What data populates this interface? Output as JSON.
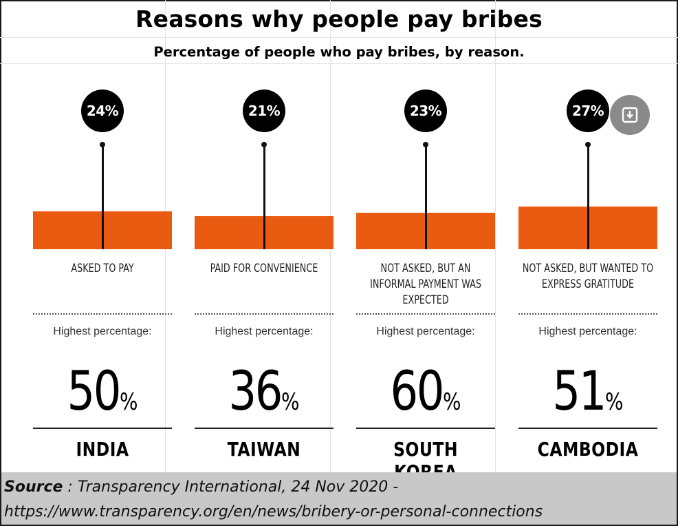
{
  "title": "Reasons why people pay bribes",
  "subtitle": "Percentage of people who pay bribes, by reason.",
  "chart_data": {
    "type": "bar",
    "categories": [
      "ASKED TO PAY",
      "PAID FOR CONVENIENCE",
      "NOT ASKED, BUT AN INFORMAL PAYMENT WAS EXPECTED",
      "NOT ASKED, BUT WANTED TO EXPRESS GRATITUDE"
    ],
    "values": [
      24,
      21,
      23,
      27
    ],
    "value_labels": [
      "24%",
      "21%",
      "23%",
      "27%"
    ],
    "ylim": [
      0,
      100
    ],
    "colors": {
      "bar": "#e85b10",
      "badge": "#000000"
    }
  },
  "panels": [
    {
      "reason": "ASKED TO PAY",
      "highest_label": "Highest percentage:",
      "highest_value": "50",
      "percent_sign": "%",
      "country": "INDIA"
    },
    {
      "reason": "PAID FOR CONVENIENCE",
      "highest_label": "Highest percentage:",
      "highest_value": "36",
      "percent_sign": "%",
      "country": "TAIWAN"
    },
    {
      "reason": "NOT ASKED, BUT AN INFORMAL PAYMENT WAS EXPECTED",
      "highest_label": "Highest percentage:",
      "highest_value": "60",
      "percent_sign": "%",
      "country": "SOUTH KOREA"
    },
    {
      "reason": "NOT ASKED, BUT WANTED TO EXPRESS GRATITUDE",
      "highest_label": "Highest percentage:",
      "highest_value": "51",
      "percent_sign": "%",
      "country": "CAMBODIA"
    }
  ],
  "download_icon": "download-icon",
  "source": {
    "label": "Source",
    "text": " : Transparency International, 24 Nov 2020 -",
    "url": "https://www.transparency.org/en/news/bribery-or-personal-connections"
  }
}
